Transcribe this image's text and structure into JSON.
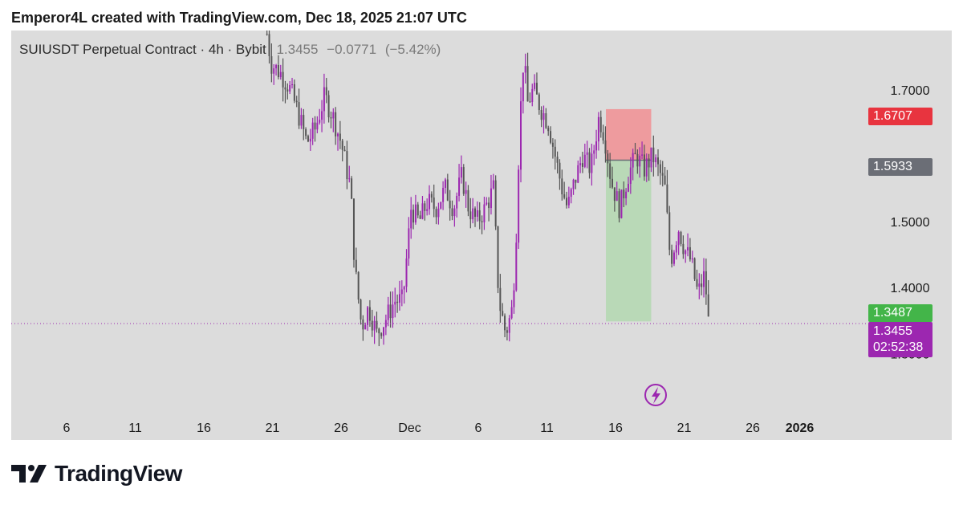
{
  "header": {
    "attribution": "Emperor4L created with TradingView.com, Dec 18, 2025 21:07 UTC"
  },
  "symbol": {
    "name": "SUIUSDT Perpetual Contract · 4h · Bybit",
    "last": "1.3455",
    "change": "−0.0771",
    "change_pct": "(−5.42%)"
  },
  "price_labels": {
    "stop": "1.6707",
    "entry": "1.5933",
    "target": "1.3487",
    "current": "1.3455",
    "countdown": "02:52:38"
  },
  "footer": {
    "brand": "TradingView"
  },
  "colors": {
    "candle_up": "#9c27b0",
    "candle_down": "#555555",
    "stop_zone": "#f28b8f",
    "target_zone": "#b5d8b3",
    "stop_label": "#e8343f",
    "entry_label": "#6b6e76",
    "target_label": "#43b549",
    "current_label": "#9c27b0",
    "background": "#dcdcdc"
  },
  "chart_data": {
    "type": "candlestick",
    "title": "SUIUSDT Perpetual Contract · 4h · Bybit",
    "y_ticks": [
      1.3,
      1.4,
      1.5,
      1.7
    ],
    "y_tick_labels": [
      "1.3000",
      "1.4000",
      "1.5000",
      "1.7000"
    ],
    "ylim": [
      1.22,
      1.79
    ],
    "x_tick_labels": [
      "6",
      "11",
      "16",
      "21",
      "26",
      "Dec",
      "6",
      "11",
      "16",
      "21",
      "26",
      "2026"
    ],
    "x_domain_days": [
      0,
      57
    ],
    "current_price": 1.3455,
    "position": {
      "type": "short",
      "entry": 1.5933,
      "stop": 1.6707,
      "target": 1.3487,
      "start_day": 39.3,
      "end_day": 42.6
    },
    "trend_path": [
      [
        14.6,
        1.785
      ],
      [
        14.9,
        1.74
      ],
      [
        15.6,
        1.725
      ],
      [
        16.2,
        1.705
      ],
      [
        16.8,
        1.67
      ],
      [
        17.5,
        1.62
      ],
      [
        18.1,
        1.64
      ],
      [
        18.8,
        1.69
      ],
      [
        19.4,
        1.66
      ],
      [
        20.0,
        1.62
      ],
      [
        20.7,
        1.55
      ],
      [
        21.0,
        1.43
      ],
      [
        21.5,
        1.34
      ],
      [
        22.0,
        1.37
      ],
      [
        22.6,
        1.33
      ],
      [
        23.2,
        1.35
      ],
      [
        23.9,
        1.38
      ],
      [
        24.5,
        1.38
      ],
      [
        25.1,
        1.52
      ],
      [
        25.7,
        1.5
      ],
      [
        26.3,
        1.53
      ],
      [
        26.9,
        1.52
      ],
      [
        27.6,
        1.55
      ],
      [
        28.2,
        1.52
      ],
      [
        28.8,
        1.57
      ],
      [
        29.3,
        1.52
      ],
      [
        29.9,
        1.5
      ],
      [
        30.5,
        1.52
      ],
      [
        31.1,
        1.55
      ],
      [
        31.5,
        1.38
      ],
      [
        32.0,
        1.33
      ],
      [
        32.5,
        1.37
      ],
      [
        32.8,
        1.5
      ],
      [
        33.0,
        1.64
      ],
      [
        33.3,
        1.75
      ],
      [
        33.6,
        1.68
      ],
      [
        34.0,
        1.7
      ],
      [
        34.6,
        1.67
      ],
      [
        35.1,
        1.65
      ],
      [
        35.6,
        1.6
      ],
      [
        36.1,
        1.55
      ],
      [
        36.5,
        1.52
      ],
      [
        37.0,
        1.56
      ],
      [
        37.6,
        1.6
      ],
      [
        38.2,
        1.58
      ],
      [
        38.8,
        1.66
      ],
      [
        39.2,
        1.63
      ],
      [
        39.7,
        1.56
      ],
      [
        40.3,
        1.52
      ],
      [
        40.9,
        1.57
      ],
      [
        41.5,
        1.6
      ],
      [
        42.1,
        1.58
      ],
      [
        42.7,
        1.6
      ],
      [
        43.3,
        1.57
      ],
      [
        43.6,
        1.55
      ],
      [
        44.0,
        1.44
      ],
      [
        44.6,
        1.49
      ],
      [
        45.0,
        1.46
      ],
      [
        45.5,
        1.44
      ],
      [
        46.0,
        1.39
      ],
      [
        46.5,
        1.42
      ],
      [
        46.8,
        1.34
      ]
    ]
  }
}
